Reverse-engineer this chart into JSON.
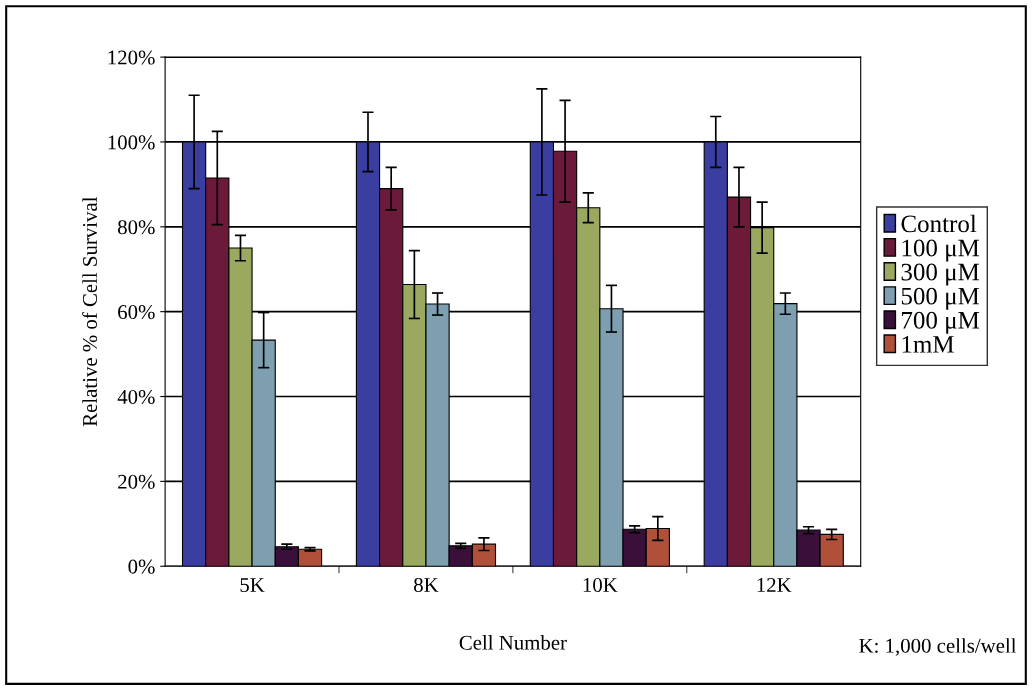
{
  "chart_data": {
    "type": "bar",
    "xlabel": "Cell Number",
    "ylabel": "Relative % of Cell Survival",
    "categories": [
      "5K",
      "8K",
      "10K",
      "12K"
    ],
    "series": [
      {
        "name": "Control",
        "color": "#3a3ea0",
        "values": [
          100,
          100,
          100,
          100
        ],
        "errors": [
          11,
          7,
          12.5,
          6
        ]
      },
      {
        "name": "100 μM",
        "color": "#6b1a3a",
        "values": [
          91.5,
          89,
          97.8,
          87
        ],
        "errors": [
          11,
          5,
          12,
          7
        ]
      },
      {
        "name": "300 μM",
        "color": "#9aa860",
        "values": [
          75,
          66.4,
          84.5,
          79.8
        ],
        "errors": [
          3,
          8,
          3.5,
          6
        ]
      },
      {
        "name": "500 μM",
        "color": "#7e9fb0",
        "values": [
          53.3,
          61.8,
          60.7,
          61.9
        ],
        "errors": [
          6.5,
          2.6,
          5.5,
          2.5
        ]
      },
      {
        "name": "700 μM",
        "color": "#3a0f3a",
        "values": [
          4.6,
          4.8,
          8.7,
          8.5
        ],
        "errors": [
          0.6,
          0.6,
          0.8,
          0.8
        ]
      },
      {
        "name": "1mM",
        "color": "#b0503a",
        "values": [
          4,
          5.2,
          8.9,
          7.5
        ],
        "errors": [
          0.4,
          1.5,
          2.8,
          1.2
        ]
      }
    ],
    "ylim": [
      0,
      120
    ],
    "yticks": [
      {
        "value": 0,
        "label": "0%"
      },
      {
        "value": 20,
        "label": "20%"
      },
      {
        "value": 40,
        "label": "40%"
      },
      {
        "value": 60,
        "label": "60%"
      },
      {
        "value": 80,
        "label": "80%"
      },
      {
        "value": 100,
        "label": "100%"
      },
      {
        "value": 120,
        "label": "120%"
      }
    ],
    "grid": "y",
    "legend": "right",
    "annotations": [
      "K: 1,000 cells/well"
    ]
  }
}
